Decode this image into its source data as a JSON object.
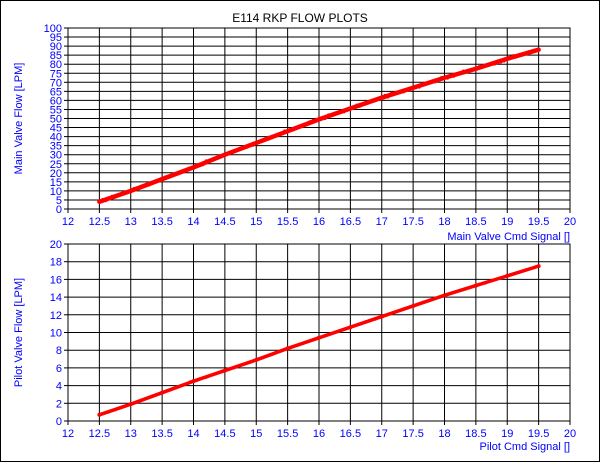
{
  "title": "E114 RKP FLOW PLOTS",
  "colors": {
    "axis_label": "#0000ff",
    "tick_label": "#0000ff",
    "data": "#ff0000",
    "grid": "#000000",
    "frame": "#000000"
  },
  "chart_data": [
    {
      "type": "scatter",
      "title": "E114 RKP FLOW PLOTS",
      "xlabel": "Main Valve Cmd Signal []",
      "ylabel": "Main Valve Flow [LPM]",
      "xlim": [
        12,
        20
      ],
      "ylim": [
        0,
        100
      ],
      "x_ticks": [
        12,
        12.5,
        13,
        13.5,
        14,
        14.5,
        15,
        15.5,
        16,
        16.5,
        17,
        17.5,
        18,
        18.5,
        19,
        19.5,
        20
      ],
      "y_ticks": [
        0,
        5,
        10,
        15,
        20,
        25,
        30,
        35,
        40,
        45,
        50,
        55,
        60,
        65,
        70,
        75,
        80,
        85,
        90,
        95,
        100
      ],
      "grid": true,
      "series": [
        {
          "x": [
            12.5,
            13.0,
            13.5,
            14.0,
            14.5,
            15.0,
            15.5,
            16.0,
            16.5,
            17.0,
            17.5,
            18.0,
            18.5,
            19.0,
            19.5
          ],
          "y": [
            4,
            10,
            16.5,
            23,
            30,
            36.5,
            43,
            49.5,
            55.5,
            61.5,
            67,
            72.5,
            77.5,
            83,
            88
          ]
        }
      ]
    },
    {
      "type": "scatter",
      "xlabel": "Pilot Cmd Signal []",
      "ylabel": "Pilot Valve Flow [LPM]",
      "xlim": [
        12,
        20
      ],
      "ylim": [
        0,
        20
      ],
      "x_ticks": [
        12,
        12.5,
        13,
        13.5,
        14,
        14.5,
        15,
        15.5,
        16,
        16.5,
        17,
        17.5,
        18,
        18.5,
        19,
        19.5,
        20
      ],
      "y_ticks": [
        0,
        2,
        4,
        6,
        8,
        10,
        12,
        14,
        16,
        18,
        20
      ],
      "grid": true,
      "series": [
        {
          "x": [
            12.5,
            13.0,
            13.5,
            14.0,
            14.5,
            15.0,
            15.5,
            16.0,
            16.5,
            17.0,
            17.5,
            18.0,
            18.5,
            19.0,
            19.5
          ],
          "y": [
            0.7,
            1.9,
            3.2,
            4.5,
            5.7,
            6.9,
            8.2,
            9.4,
            10.6,
            11.8,
            13.0,
            14.2,
            15.3,
            16.4,
            17.5
          ]
        }
      ]
    }
  ]
}
